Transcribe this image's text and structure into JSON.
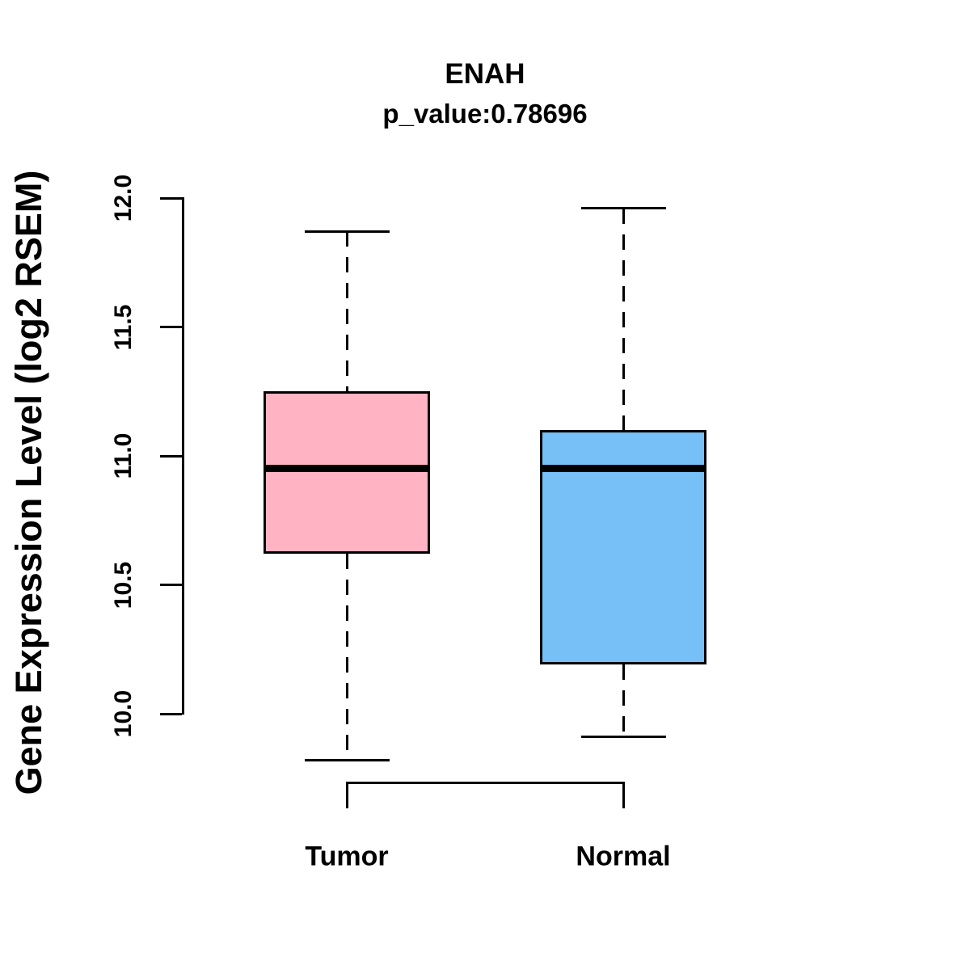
{
  "title": "ENAH",
  "subtitle": "p_value:0.78696",
  "y_axis": {
    "label": "Gene Expression Level (log2 RSEM)",
    "tick_labels": [
      "10.0",
      "10.5",
      "11.0",
      "11.5",
      "12.0"
    ]
  },
  "x_axis": {
    "categories": [
      "Tumor",
      "Normal"
    ]
  },
  "colors": {
    "tumor_fill": "#FFB3C3",
    "normal_fill": "#76BFF7",
    "line": "#000000",
    "background": "#FFFFFF"
  },
  "chart_data": {
    "type": "boxplot",
    "title": "ENAH",
    "subtitle": "p_value:0.78696",
    "ylabel": "Gene Expression Level (log2 RSEM)",
    "xlabel": "",
    "ylim": [
      10.0,
      12.0
    ],
    "y_ticks": [
      10.0,
      10.5,
      11.0,
      11.5,
      12.0
    ],
    "grid": false,
    "legend": "none",
    "categories": [
      "Tumor",
      "Normal"
    ],
    "series": [
      {
        "name": "Tumor",
        "fill": "#FFB3C3",
        "lower_whisker": 9.82,
        "q1": 10.62,
        "median": 10.95,
        "q3": 11.25,
        "upper_whisker": 11.87,
        "outliers": []
      },
      {
        "name": "Normal",
        "fill": "#76BFF7",
        "lower_whisker": 9.91,
        "q1": 10.19,
        "median": 10.95,
        "q3": 11.1,
        "upper_whisker": 11.96,
        "outliers": []
      }
    ]
  }
}
